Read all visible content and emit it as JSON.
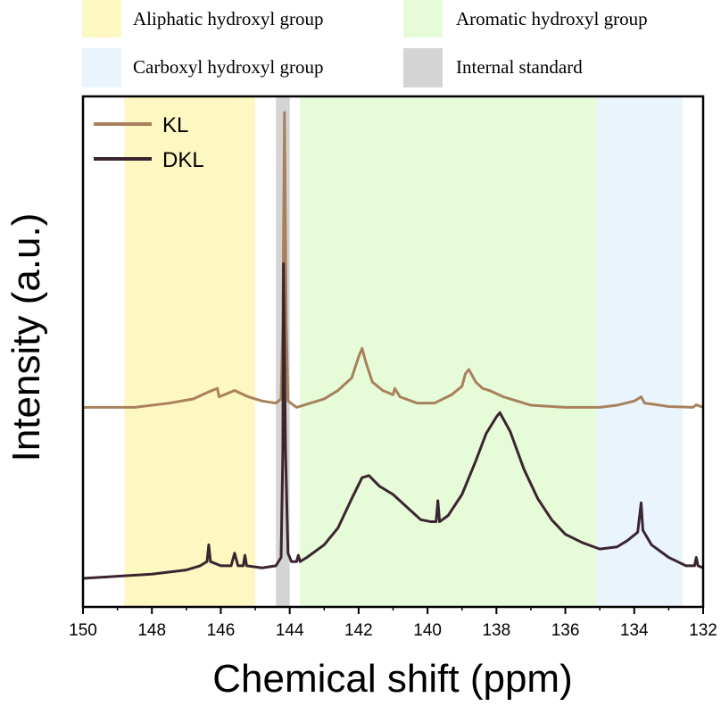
{
  "chart_data": {
    "type": "line",
    "xlabel": "Chemical shift (ppm)",
    "ylabel": "Intensity (a.u.)",
    "xlim": [
      150,
      132
    ],
    "x_reversed": true,
    "xticks": [
      150,
      148,
      146,
      144,
      142,
      140,
      138,
      136,
      134,
      132
    ],
    "yticks": "none",
    "grid": false,
    "legend_position": "top-left",
    "regions": [
      {
        "name": "Aliphatic hydroxyl group",
        "from": 148.8,
        "to": 145.0,
        "color": "#fdf7c2"
      },
      {
        "name": "Internal standard",
        "from": 144.4,
        "to": 144.0,
        "color": "#d4d4d4"
      },
      {
        "name": "Aromatic hydroxyl group",
        "from": 143.7,
        "to": 135.1,
        "color": "#e6fbd8"
      },
      {
        "name": "Carboxyl hydroxyl group",
        "from": 135.1,
        "to": 132.6,
        "color": "#eaf4fd"
      }
    ],
    "series": [
      {
        "name": "KL",
        "color": "#a8815c",
        "points": [
          [
            150.0,
            0.3
          ],
          [
            148.5,
            0.3
          ],
          [
            147.5,
            0.31
          ],
          [
            146.8,
            0.32
          ],
          [
            146.4,
            0.335
          ],
          [
            146.1,
            0.345
          ],
          [
            146.05,
            0.325
          ],
          [
            145.9,
            0.33
          ],
          [
            145.6,
            0.34
          ],
          [
            145.2,
            0.325
          ],
          [
            144.8,
            0.315
          ],
          [
            144.4,
            0.31
          ],
          [
            144.25,
            0.32
          ],
          [
            144.2,
            0.5
          ],
          [
            144.15,
            1.0
          ],
          [
            144.1,
            0.5
          ],
          [
            144.05,
            0.315
          ],
          [
            143.8,
            0.3
          ],
          [
            143.4,
            0.31
          ],
          [
            143.0,
            0.32
          ],
          [
            142.6,
            0.34
          ],
          [
            142.2,
            0.37
          ],
          [
            142.0,
            0.42
          ],
          [
            141.9,
            0.44
          ],
          [
            141.8,
            0.41
          ],
          [
            141.6,
            0.36
          ],
          [
            141.3,
            0.34
          ],
          [
            141.0,
            0.33
          ],
          [
            140.95,
            0.345
          ],
          [
            140.8,
            0.325
          ],
          [
            140.3,
            0.31
          ],
          [
            139.8,
            0.31
          ],
          [
            139.3,
            0.33
          ],
          [
            139.0,
            0.35
          ],
          [
            138.9,
            0.38
          ],
          [
            138.8,
            0.39
          ],
          [
            138.6,
            0.36
          ],
          [
            138.4,
            0.345
          ],
          [
            138.2,
            0.34
          ],
          [
            137.8,
            0.325
          ],
          [
            137.0,
            0.305
          ],
          [
            136.0,
            0.3
          ],
          [
            135.0,
            0.3
          ],
          [
            134.5,
            0.305
          ],
          [
            134.0,
            0.315
          ],
          [
            133.8,
            0.325
          ],
          [
            133.7,
            0.31
          ],
          [
            133.5,
            0.308
          ],
          [
            133.0,
            0.302
          ],
          [
            132.3,
            0.3
          ],
          [
            132.2,
            0.306
          ],
          [
            132.0,
            0.3
          ]
        ]
      },
      {
        "name": "DKL",
        "color": "#3b2530",
        "points": [
          [
            150.0,
            0.0
          ],
          [
            149.0,
            0.005
          ],
          [
            148.0,
            0.01
          ],
          [
            147.0,
            0.02
          ],
          [
            146.6,
            0.03
          ],
          [
            146.4,
            0.04
          ],
          [
            146.35,
            0.08
          ],
          [
            146.3,
            0.04
          ],
          [
            146.0,
            0.03
          ],
          [
            145.7,
            0.03
          ],
          [
            145.6,
            0.06
          ],
          [
            145.5,
            0.03
          ],
          [
            145.35,
            0.03
          ],
          [
            145.3,
            0.055
          ],
          [
            145.25,
            0.03
          ],
          [
            144.8,
            0.025
          ],
          [
            144.4,
            0.03
          ],
          [
            144.25,
            0.05
          ],
          [
            144.2,
            0.3
          ],
          [
            144.18,
            0.75
          ],
          [
            144.12,
            0.3
          ],
          [
            144.05,
            0.06
          ],
          [
            143.95,
            0.04
          ],
          [
            143.8,
            0.04
          ],
          [
            143.75,
            0.055
          ],
          [
            143.7,
            0.04
          ],
          [
            143.5,
            0.05
          ],
          [
            143.0,
            0.08
          ],
          [
            142.6,
            0.12
          ],
          [
            142.2,
            0.19
          ],
          [
            141.9,
            0.24
          ],
          [
            141.7,
            0.245
          ],
          [
            141.4,
            0.22
          ],
          [
            141.0,
            0.2
          ],
          [
            140.6,
            0.17
          ],
          [
            140.2,
            0.14
          ],
          [
            139.9,
            0.135
          ],
          [
            139.75,
            0.135
          ],
          [
            139.7,
            0.185
          ],
          [
            139.65,
            0.135
          ],
          [
            139.4,
            0.15
          ],
          [
            139.0,
            0.2
          ],
          [
            138.6,
            0.28
          ],
          [
            138.3,
            0.345
          ],
          [
            138.0,
            0.385
          ],
          [
            137.9,
            0.395
          ],
          [
            137.6,
            0.35
          ],
          [
            137.2,
            0.26
          ],
          [
            136.8,
            0.19
          ],
          [
            136.4,
            0.14
          ],
          [
            136.0,
            0.105
          ],
          [
            135.5,
            0.085
          ],
          [
            135.0,
            0.07
          ],
          [
            134.5,
            0.075
          ],
          [
            134.2,
            0.09
          ],
          [
            133.9,
            0.11
          ],
          [
            133.8,
            0.18
          ],
          [
            133.75,
            0.115
          ],
          [
            133.5,
            0.08
          ],
          [
            133.0,
            0.05
          ],
          [
            132.5,
            0.03
          ],
          [
            132.25,
            0.03
          ],
          [
            132.2,
            0.05
          ],
          [
            132.15,
            0.03
          ],
          [
            132.0,
            0.025
          ]
        ]
      }
    ]
  }
}
